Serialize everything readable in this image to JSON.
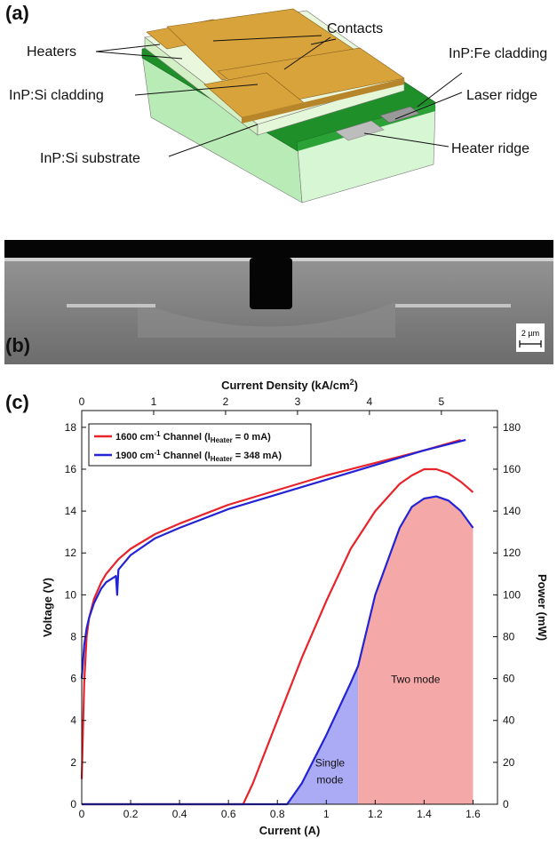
{
  "panel_a": {
    "letter": "(a)",
    "labels": {
      "contacts": "Contacts",
      "heaters": "Heaters",
      "inp_fe": "InP:Fe cladding",
      "inp_si_clad": "InP:Si cladding",
      "laser_ridge": "Laser ridge",
      "heater_ridge": "Heater ridge",
      "substrate": "InP:Si substrate"
    },
    "colors": {
      "gold": "#d8a33a",
      "light_green": "#c5efc3",
      "dark_green": "#1f8f2a",
      "grey": "#bdbdbd"
    }
  },
  "panel_b": {
    "letter": "(b)",
    "scale_bar": "2 µm"
  },
  "panel_c": {
    "letter": "(c)",
    "legend": [
      {
        "base": "1600 cm",
        "sup1": "-1",
        "mid": " Channel (I",
        "sub": "Heater",
        "end": " = 0 mA)",
        "color": "#e8232a"
      },
      {
        "base": "1900 cm",
        "sup1": "-1",
        "mid": " Channel (I",
        "sub": "Heater",
        "end": " = 348 mA)",
        "color": "#2323d6"
      }
    ],
    "regions": {
      "single_line1": "Single",
      "single_line2": "mode",
      "two": "Two mode"
    },
    "region_colors": {
      "single": "#aaaaf5",
      "two": "#f5a8a8"
    }
  },
  "chart_data": {
    "type": "line",
    "xlabel": "Current (A)",
    "ylabel": "Voltage (V)",
    "y2label": "Power (mW)",
    "x2label_base": "Current Density (kA/cm",
    "x2label_sup": "2",
    "x2label_end": ")",
    "xlim": [
      0,
      1.7
    ],
    "ylim": [
      0,
      18.8
    ],
    "y2lim": [
      0,
      188
    ],
    "x2lim": [
      0,
      5.78
    ],
    "xticks": [
      0,
      0.2,
      0.4,
      0.6,
      0.8,
      1,
      1.2,
      1.4,
      1.6
    ],
    "xtick_labels": [
      "0",
      "0.2",
      "0.4",
      "0.6",
      "0.8",
      "1",
      "1.2",
      "1.4",
      "1.6"
    ],
    "yticks": [
      0,
      2,
      4,
      6,
      8,
      10,
      12,
      14,
      16,
      18
    ],
    "y2ticks": [
      0,
      20,
      40,
      60,
      80,
      100,
      120,
      140,
      160,
      180
    ],
    "x2ticks": [
      0,
      1,
      2,
      3,
      4,
      5
    ],
    "single_mode_region": [
      0.84,
      1.13
    ],
    "two_mode_region": [
      1.13,
      1.6
    ],
    "series": [
      {
        "name": "1600 cm-1 Channel (IHeater = 0 mA) voltage",
        "axis": "left",
        "color": "#e8232a",
        "x": [
          0,
          0.01,
          0.02,
          0.03,
          0.05,
          0.08,
          0.1,
          0.15,
          0.2,
          0.3,
          0.4,
          0.6,
          0.8,
          1.0,
          1.2,
          1.4,
          1.55
        ],
        "y": [
          1.2,
          5.8,
          8.0,
          8.9,
          9.8,
          10.6,
          11.0,
          11.7,
          12.2,
          12.9,
          13.4,
          14.3,
          15.0,
          15.7,
          16.3,
          16.9,
          17.4
        ]
      },
      {
        "name": "1900 cm-1 Channel (IHeater = 348 mA) voltage",
        "axis": "left",
        "color": "#2323d6",
        "x": [
          0,
          0.01,
          0.02,
          0.03,
          0.05,
          0.08,
          0.1,
          0.14,
          0.145,
          0.15,
          0.2,
          0.3,
          0.4,
          0.6,
          0.8,
          1.0,
          1.2,
          1.4,
          1.57
        ],
        "y": [
          6.0,
          7.6,
          8.4,
          8.9,
          9.6,
          10.3,
          10.6,
          10.9,
          10.0,
          11.2,
          11.9,
          12.7,
          13.2,
          14.1,
          14.8,
          15.5,
          16.2,
          16.9,
          17.4
        ]
      },
      {
        "name": "1600 cm-1 Channel (IHeater = 0 mA) power",
        "axis": "right",
        "color": "#e8232a",
        "x": [
          0,
          0.66,
          0.7,
          0.8,
          0.9,
          1.0,
          1.1,
          1.2,
          1.3,
          1.35,
          1.4,
          1.45,
          1.5,
          1.55,
          1.6
        ],
        "y": [
          0,
          0,
          10,
          40,
          70,
          97,
          122,
          140,
          153,
          157,
          160,
          160,
          158,
          154,
          149
        ]
      },
      {
        "name": "1900 cm-1 Channel (IHeater = 348 mA) power",
        "axis": "right",
        "color": "#2323d6",
        "x": [
          0,
          0.84,
          0.9,
          1.0,
          1.1,
          1.13,
          1.2,
          1.3,
          1.35,
          1.4,
          1.45,
          1.5,
          1.55,
          1.6
        ],
        "y": [
          0,
          0,
          10,
          33,
          58,
          66,
          100,
          132,
          142,
          146,
          147,
          145,
          140,
          132
        ]
      }
    ]
  }
}
